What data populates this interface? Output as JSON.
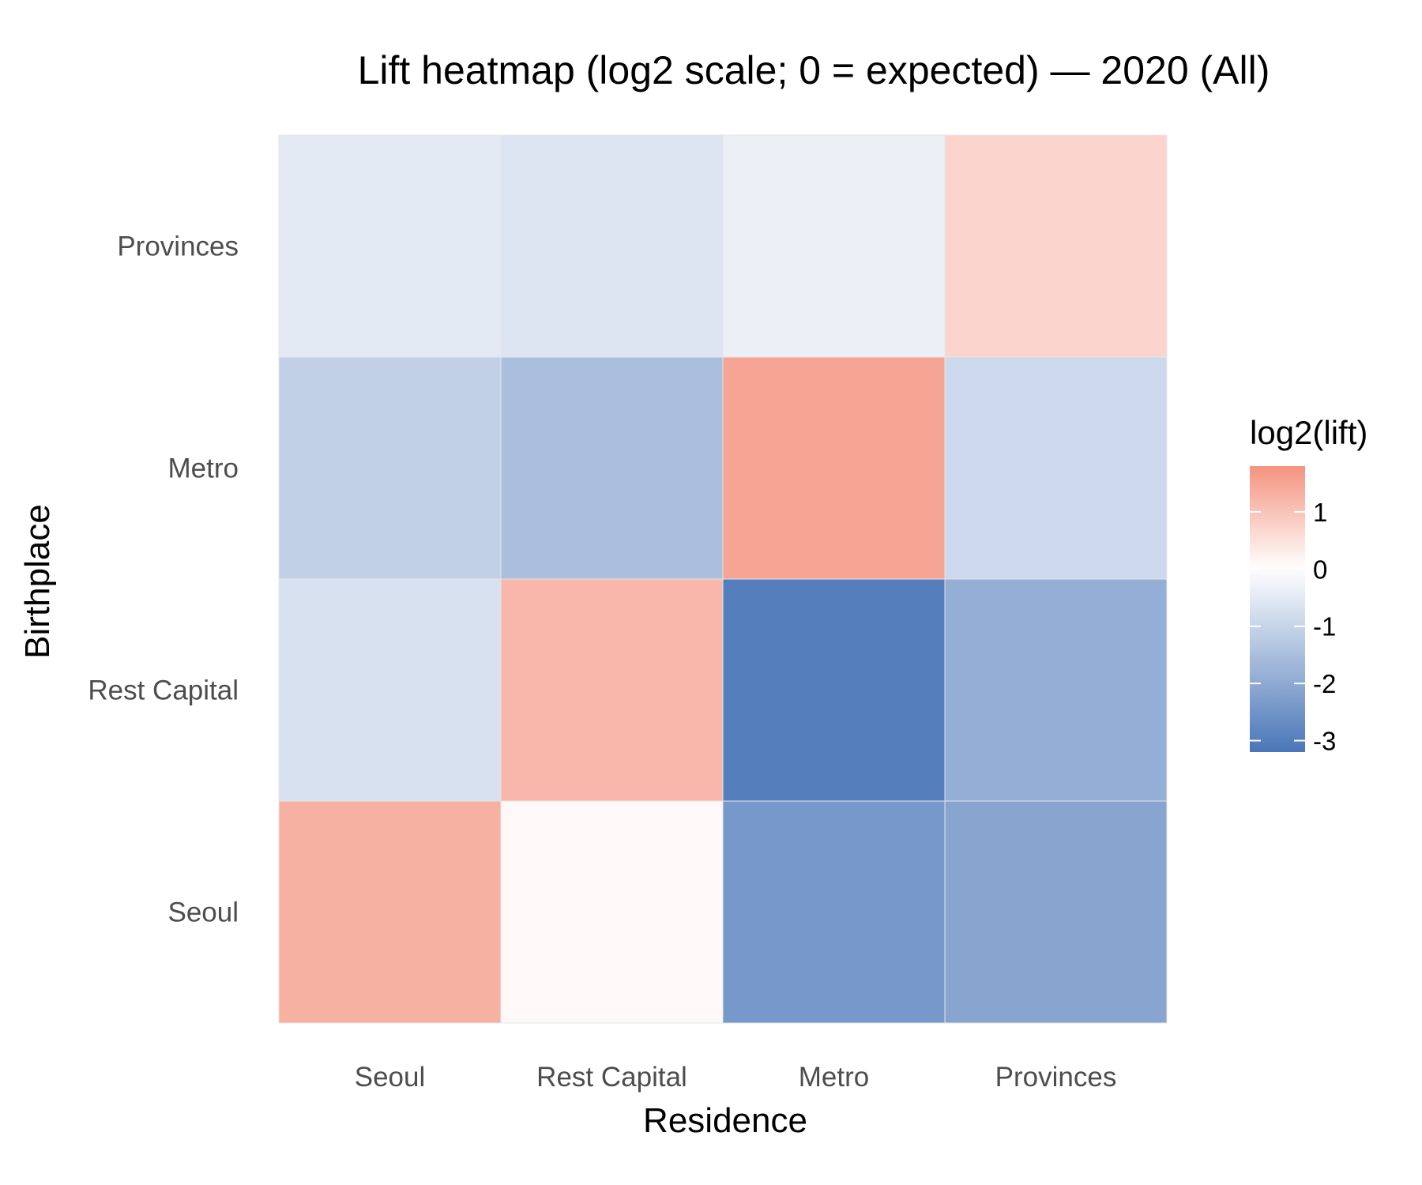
{
  "chart_data": {
    "type": "heatmap",
    "title": "Lift heatmap (log2 scale; 0 = expected) — 2020 (All)",
    "xlabel": "Residence",
    "ylabel": "Birthplace",
    "x_categories": [
      "Seoul",
      "Rest Capital",
      "Metro",
      "Provinces"
    ],
    "y_categories": [
      "Seoul",
      "Rest Capital",
      "Metro",
      "Provinces"
    ],
    "values": [
      {
        "birthplace": "Seoul",
        "residence": "Seoul",
        "value": 1.3
      },
      {
        "birthplace": "Seoul",
        "residence": "Rest Capital",
        "value": 0.1
      },
      {
        "birthplace": "Seoul",
        "residence": "Metro",
        "value": -2.4
      },
      {
        "birthplace": "Seoul",
        "residence": "Provinces",
        "value": -2.1
      },
      {
        "birthplace": "Rest Capital",
        "residence": "Seoul",
        "value": -0.7
      },
      {
        "birthplace": "Rest Capital",
        "residence": "Rest Capital",
        "value": 1.2
      },
      {
        "birthplace": "Rest Capital",
        "residence": "Metro",
        "value": -3.0
      },
      {
        "birthplace": "Rest Capital",
        "residence": "Provinces",
        "value": -1.9
      },
      {
        "birthplace": "Metro",
        "residence": "Seoul",
        "value": -1.1
      },
      {
        "birthplace": "Metro",
        "residence": "Rest Capital",
        "value": -1.5
      },
      {
        "birthplace": "Metro",
        "residence": "Metro",
        "value": 1.5
      },
      {
        "birthplace": "Metro",
        "residence": "Provinces",
        "value": -0.9
      },
      {
        "birthplace": "Provinces",
        "residence": "Seoul",
        "value": -0.5
      },
      {
        "birthplace": "Provinces",
        "residence": "Rest Capital",
        "value": -0.6
      },
      {
        "birthplace": "Provinces",
        "residence": "Metro",
        "value": -0.35
      },
      {
        "birthplace": "Provinces",
        "residence": "Provinces",
        "value": 0.7
      }
    ],
    "legend": {
      "title": "log2(lift)",
      "position": "right",
      "range": [
        -3.2,
        1.8
      ],
      "breaks": [
        1,
        0,
        -1,
        -2,
        -3
      ],
      "break_labels": [
        "1",
        "0",
        "-1",
        "-2",
        "-3"
      ],
      "low_color": "#4a76b8",
      "mid_color": "#ffffff",
      "high_color": "#f4937f"
    },
    "grid": false
  }
}
